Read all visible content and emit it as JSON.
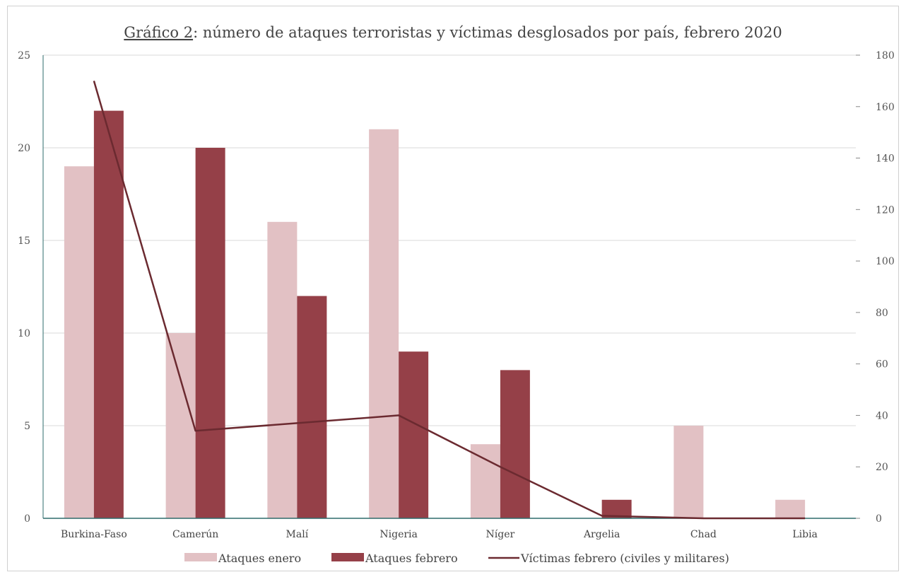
{
  "chart_data": {
    "type": "bar",
    "title": "Gráfico 2: número de ataques terroristas y víctimas desglosados por país, febrero 2020",
    "title_prefix": "Gráfico 2",
    "title_rest": ": número de ataques terroristas y víctimas desglosados por país, febrero 2020",
    "categories": [
      "Burkina-Faso",
      "Camerún",
      "Malí",
      "Nigeria",
      "Níger",
      "Argelia",
      "Chad",
      "Libia"
    ],
    "series": [
      {
        "name": "Ataques enero",
        "kind": "bar",
        "axis": "left",
        "color": "#e2c1c4",
        "values": [
          19,
          10,
          16,
          21,
          4,
          0,
          5,
          1
        ]
      },
      {
        "name": "Ataques febrero",
        "kind": "bar",
        "axis": "left",
        "color": "#954048",
        "values": [
          22,
          20,
          12,
          9,
          8,
          1,
          0,
          0
        ]
      },
      {
        "name": "Víctimas febrero (civiles y militares)",
        "kind": "line",
        "axis": "right",
        "color": "#6b2a30",
        "values": [
          170,
          34,
          37,
          40,
          20,
          1,
          0,
          0
        ]
      }
    ],
    "y_left": {
      "min": 0,
      "max": 25,
      "ticks": [
        "0",
        "5",
        "10",
        "15",
        "20",
        "25"
      ]
    },
    "y_right": {
      "min": 0,
      "max": 180,
      "ticks": [
        "0",
        "20",
        "40",
        "60",
        "80",
        "100",
        "120",
        "140",
        "160",
        "180"
      ]
    },
    "grid": true,
    "legend_position": "bottom",
    "colors": {
      "grid": "#d9d9d9",
      "baseline": "#2e6b6b",
      "frame": "#d0d0d0"
    }
  }
}
